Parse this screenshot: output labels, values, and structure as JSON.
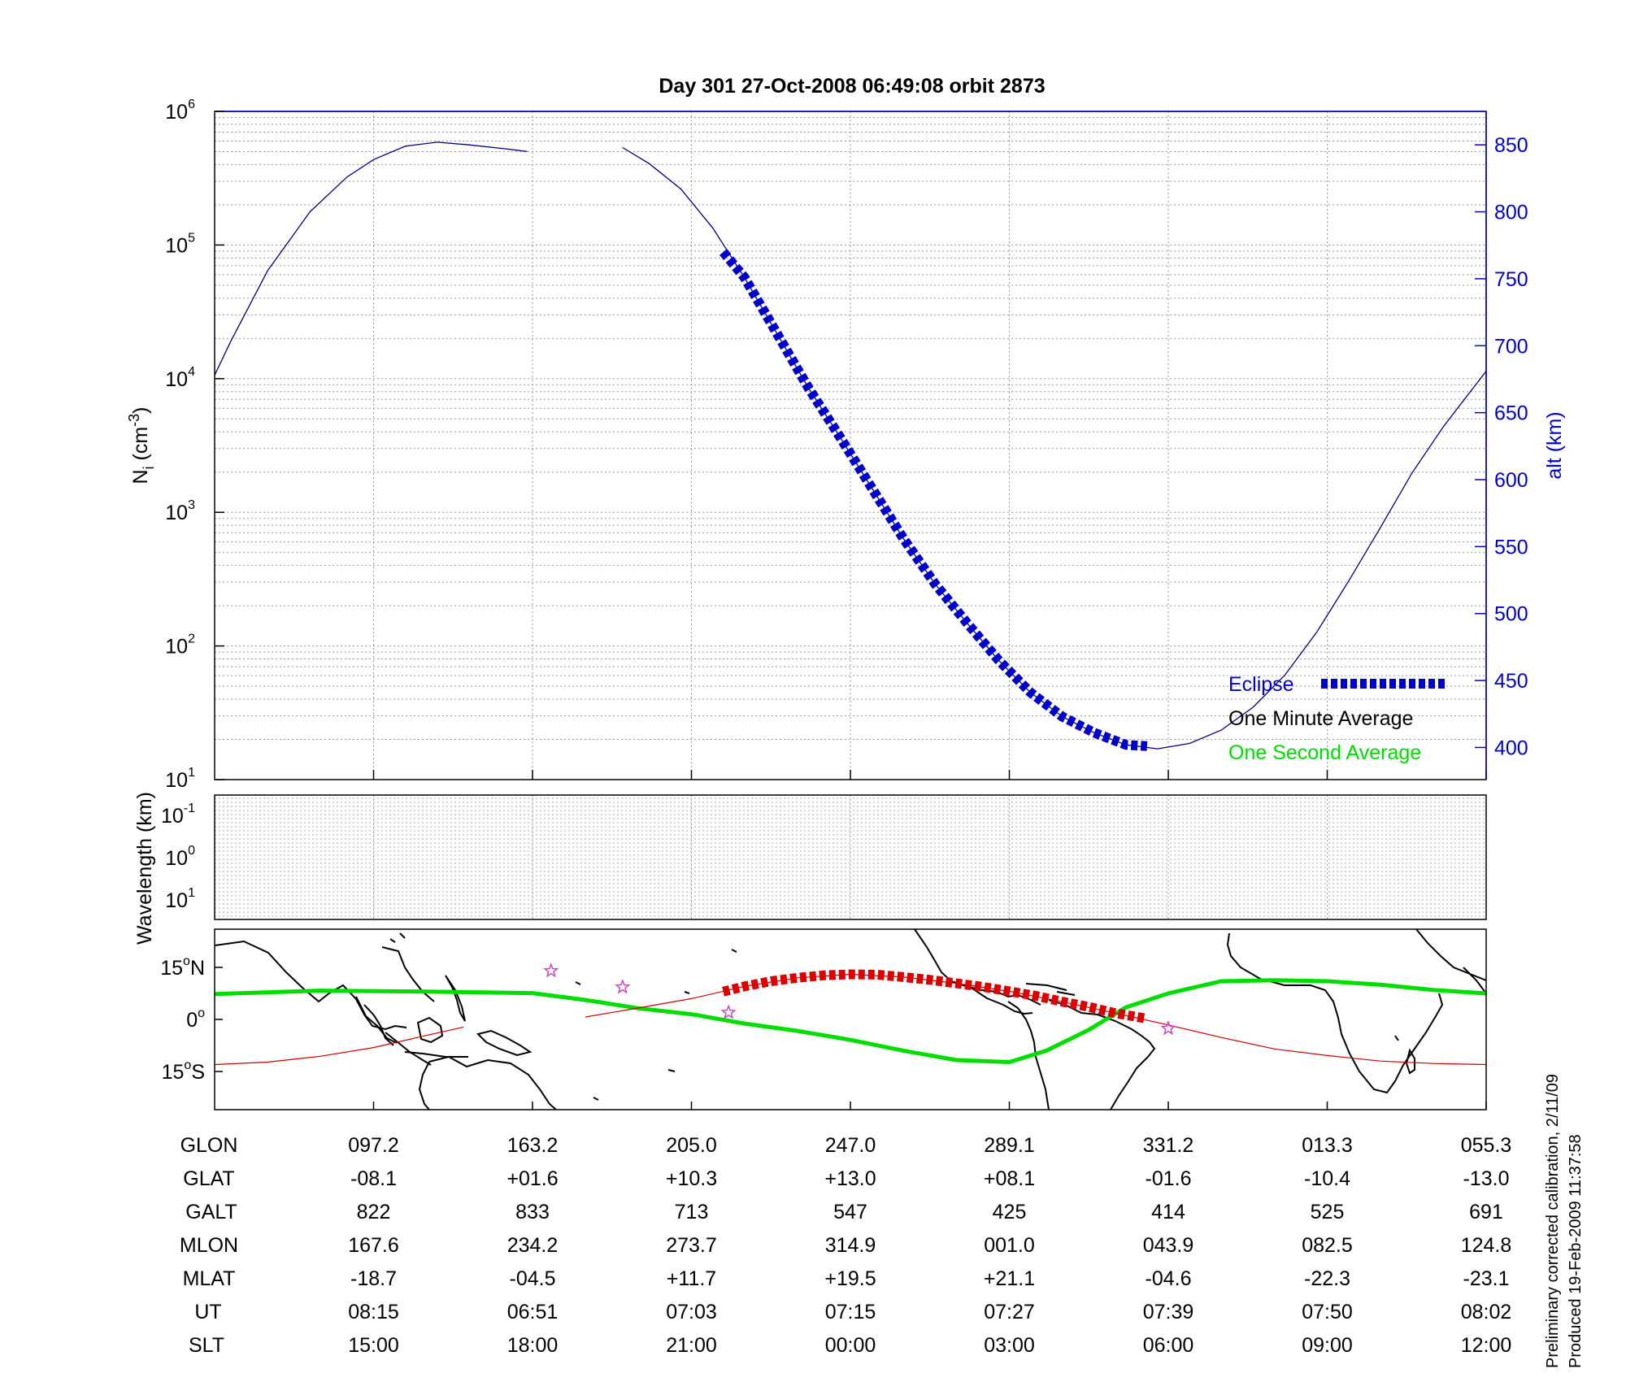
{
  "figure": {
    "title": "Day 301  27-Oct-2008 06:49:08   orbit 2873",
    "footer_line1": "Preliminary corrected calibration, 2/11/09",
    "footer_line2": "Produced 19-Feb-2009 11:37:58"
  },
  "chart_data": [
    {
      "type": "line",
      "panel": "density",
      "title": "Day 301  27-Oct-2008 06:49:08   orbit 2873",
      "ylabel_left": "N_i (cm^-3)",
      "ylabel_left_parts": {
        "base": "N",
        "sub": "i",
        "open": " (cm",
        "sup": "-3",
        "close": ")"
      },
      "yscale_left": "log",
      "ylim_left": [
        10,
        1000000
      ],
      "yticks_left": [
        {
          "base": "10",
          "exp": "1",
          "value": 10
        },
        {
          "base": "10",
          "exp": "2",
          "value": 100
        },
        {
          "base": "10",
          "exp": "3",
          "value": 1000
        },
        {
          "base": "10",
          "exp": "4",
          "value": 10000
        },
        {
          "base": "10",
          "exp": "5",
          "value": 100000
        },
        {
          "base": "10",
          "exp": "6",
          "value": 1000000
        }
      ],
      "ylabel_right": "alt (km)",
      "ylim_right": [
        376,
        875
      ],
      "yticks_right": [
        "400",
        "450",
        "500",
        "550",
        "600",
        "650",
        "700",
        "750",
        "800",
        "850"
      ],
      "x_label": "SLT (h)",
      "xlim": [
        12,
        36
      ],
      "x_ticks": [
        15,
        18,
        21,
        24,
        27,
        30,
        33,
        36
      ],
      "grid": true,
      "legend_position": "lower-right",
      "legend": [
        {
          "label": "Eclipse",
          "color": "#0000cc",
          "style": "dashed-thick"
        },
        {
          "label": "One Minute Average",
          "color": "#000000",
          "style": "none"
        },
        {
          "label": "One Second Average",
          "color": "#00dd00",
          "style": "none"
        }
      ],
      "series": [
        {
          "name": "alt (km)",
          "axis": "right",
          "color": "#000080",
          "x": [
            12.0,
            12.3,
            13.0,
            13.8,
            14.5,
            15.0,
            15.6,
            16.2,
            16.8,
            17.5,
            17.9
          ],
          "y": [
            678,
            703,
            756,
            800,
            826,
            839,
            849,
            852,
            850,
            847,
            845
          ]
        },
        {
          "name": "alt (km)",
          "axis": "right",
          "color": "#000080",
          "x": [
            19.7,
            20.2,
            20.8,
            21.4,
            22.0,
            22.6,
            23.2,
            23.8,
            24.4,
            25.0,
            25.6,
            26.2,
            26.8,
            27.4,
            28.0,
            28.6,
            29.2,
            29.8,
            30.4,
            31.0,
            31.6,
            32.2,
            32.8,
            33.4,
            34.0,
            34.6,
            35.2,
            36.0
          ],
          "y": [
            848,
            836,
            817,
            788,
            751,
            710,
            669,
            632,
            594,
            556,
            522,
            493,
            465,
            441,
            423,
            411,
            402,
            399,
            403,
            413,
            430,
            454,
            486,
            524,
            564,
            605,
            640,
            681
          ]
        },
        {
          "name": "Eclipse",
          "axis": "right",
          "color": "#0000cc",
          "x": [
            21.6,
            22.0,
            22.6,
            23.2,
            23.8,
            24.4,
            25.0,
            25.6,
            26.2,
            26.8,
            27.4,
            28.0,
            28.6,
            29.2,
            29.6
          ],
          "y": [
            770,
            751,
            710,
            669,
            632,
            594,
            556,
            522,
            493,
            465,
            441,
            423,
            411,
            402,
            401
          ]
        }
      ]
    },
    {
      "type": "heatmap",
      "panel": "wavelength",
      "ylabel": "Wavelength (km)",
      "yticks": [
        {
          "base": "10",
          "exp": "-1"
        },
        {
          "base": "10",
          "exp": "0"
        },
        {
          "base": "10",
          "exp": "1"
        }
      ],
      "yscale": "log",
      "grid": true
    },
    {
      "type": "line",
      "panel": "ground-track-map",
      "yticks": [
        {
          "deg": "15",
          "hemi": "N",
          "lat": 15
        },
        {
          "deg": "0",
          "hemi": "",
          "lat": 0
        },
        {
          "deg": "15",
          "hemi": "S",
          "lat": -15
        }
      ],
      "ylim": [
        -26,
        26
      ],
      "xlim": [
        12,
        36
      ],
      "series": [
        {
          "name": "dip equator",
          "color": "#00dd00",
          "x": [
            12.0,
            14.0,
            16.0,
            18.0,
            19.0,
            20.0,
            21.0,
            22.0,
            23.0,
            24.0,
            25.0,
            26.0,
            27.0,
            27.7,
            28.5,
            29.2,
            30.0,
            31.0,
            32.0,
            33.0,
            34.0,
            35.0,
            36.0
          ],
          "y": [
            7.3,
            8.3,
            8.0,
            7.6,
            5.6,
            3.2,
            1.5,
            -1.2,
            -3.3,
            -5.9,
            -9.0,
            -11.7,
            -12.3,
            -9.0,
            -3.0,
            3.5,
            7.5,
            11.0,
            11.3,
            11.0,
            10.0,
            8.5,
            7.5
          ]
        },
        {
          "name": "orbit track",
          "color": "#cc0000",
          "x": [
            12.0,
            13.0,
            14.0,
            15.0,
            16.0,
            16.7
          ],
          "y": [
            -13.0,
            -12.3,
            -10.6,
            -8.1,
            -4.6,
            -2.2
          ]
        },
        {
          "name": "orbit track",
          "color": "#cc0000",
          "x": [
            19.0,
            20.0,
            21.0,
            22.0,
            23.0,
            24.0,
            25.0,
            26.0,
            27.0,
            28.0,
            29.0,
            30.0,
            31.0,
            32.0,
            33.0,
            34.0,
            35.0,
            36.0
          ],
          "y": [
            0.7,
            3.3,
            6.0,
            9.5,
            12.0,
            13.0,
            12.2,
            10.4,
            8.1,
            5.1,
            1.8,
            -1.6,
            -5.2,
            -8.5,
            -10.4,
            -12.0,
            -12.7,
            -13.0
          ]
        },
        {
          "name": "Eclipse",
          "color": "#dd0000",
          "x": [
            21.6,
            22.0,
            22.5,
            23.0,
            23.5,
            24.0,
            24.5,
            25.0,
            25.5,
            26.0,
            26.5,
            27.0,
            27.5,
            28.0,
            28.5,
            29.0,
            29.6
          ],
          "y": [
            8.0,
            9.5,
            11.0,
            12.0,
            12.7,
            13.0,
            12.9,
            12.2,
            11.4,
            10.4,
            9.4,
            8.1,
            6.8,
            5.1,
            3.6,
            1.8,
            0.2
          ]
        }
      ],
      "stars": [
        {
          "x": 18.35,
          "y": 14.0
        },
        {
          "x": 19.7,
          "y": 9.3
        },
        {
          "x": 21.7,
          "y": 2.0
        },
        {
          "x": 30.0,
          "y": -2.6
        }
      ]
    }
  ],
  "table": {
    "row_labels": [
      "GLON",
      "GLAT",
      "GALT",
      "MLON",
      "MLAT",
      "UT",
      "SLT"
    ],
    "columns": [
      [
        "097.2",
        "-08.1",
        "822",
        "167.6",
        "-18.7",
        "08:15",
        "15:00"
      ],
      [
        "163.2",
        "+01.6",
        "833",
        "234.2",
        "-04.5",
        "06:51",
        "18:00"
      ],
      [
        "205.0",
        "+10.3",
        "713",
        "273.7",
        "+11.7",
        "07:03",
        "21:00"
      ],
      [
        "247.0",
        "+13.0",
        "547",
        "314.9",
        "+19.5",
        "07:15",
        "00:00"
      ],
      [
        "289.1",
        "+08.1",
        "425",
        "001.0",
        "+21.1",
        "07:27",
        "03:00"
      ],
      [
        "331.2",
        "-01.6",
        "414",
        "043.9",
        "-04.6",
        "07:39",
        "06:00"
      ],
      [
        "013.3",
        "-10.4",
        "525",
        "082.5",
        "-22.3",
        "07:50",
        "09:00"
      ],
      [
        "055.3",
        "-13.0",
        "691",
        "124.8",
        "-23.1",
        "08:02",
        "12:00"
      ]
    ]
  },
  "colors": {
    "altitude_axis": "#0000cc",
    "altitude_line": "#000080",
    "eclipse": "#0000cc",
    "eclipse_map": "#dd0000",
    "orbit_track": "#cc0000",
    "one_second_average": "#00dd00",
    "stars": "#cc44cc",
    "grid": "#999999",
    "coastline": "#000000"
  }
}
